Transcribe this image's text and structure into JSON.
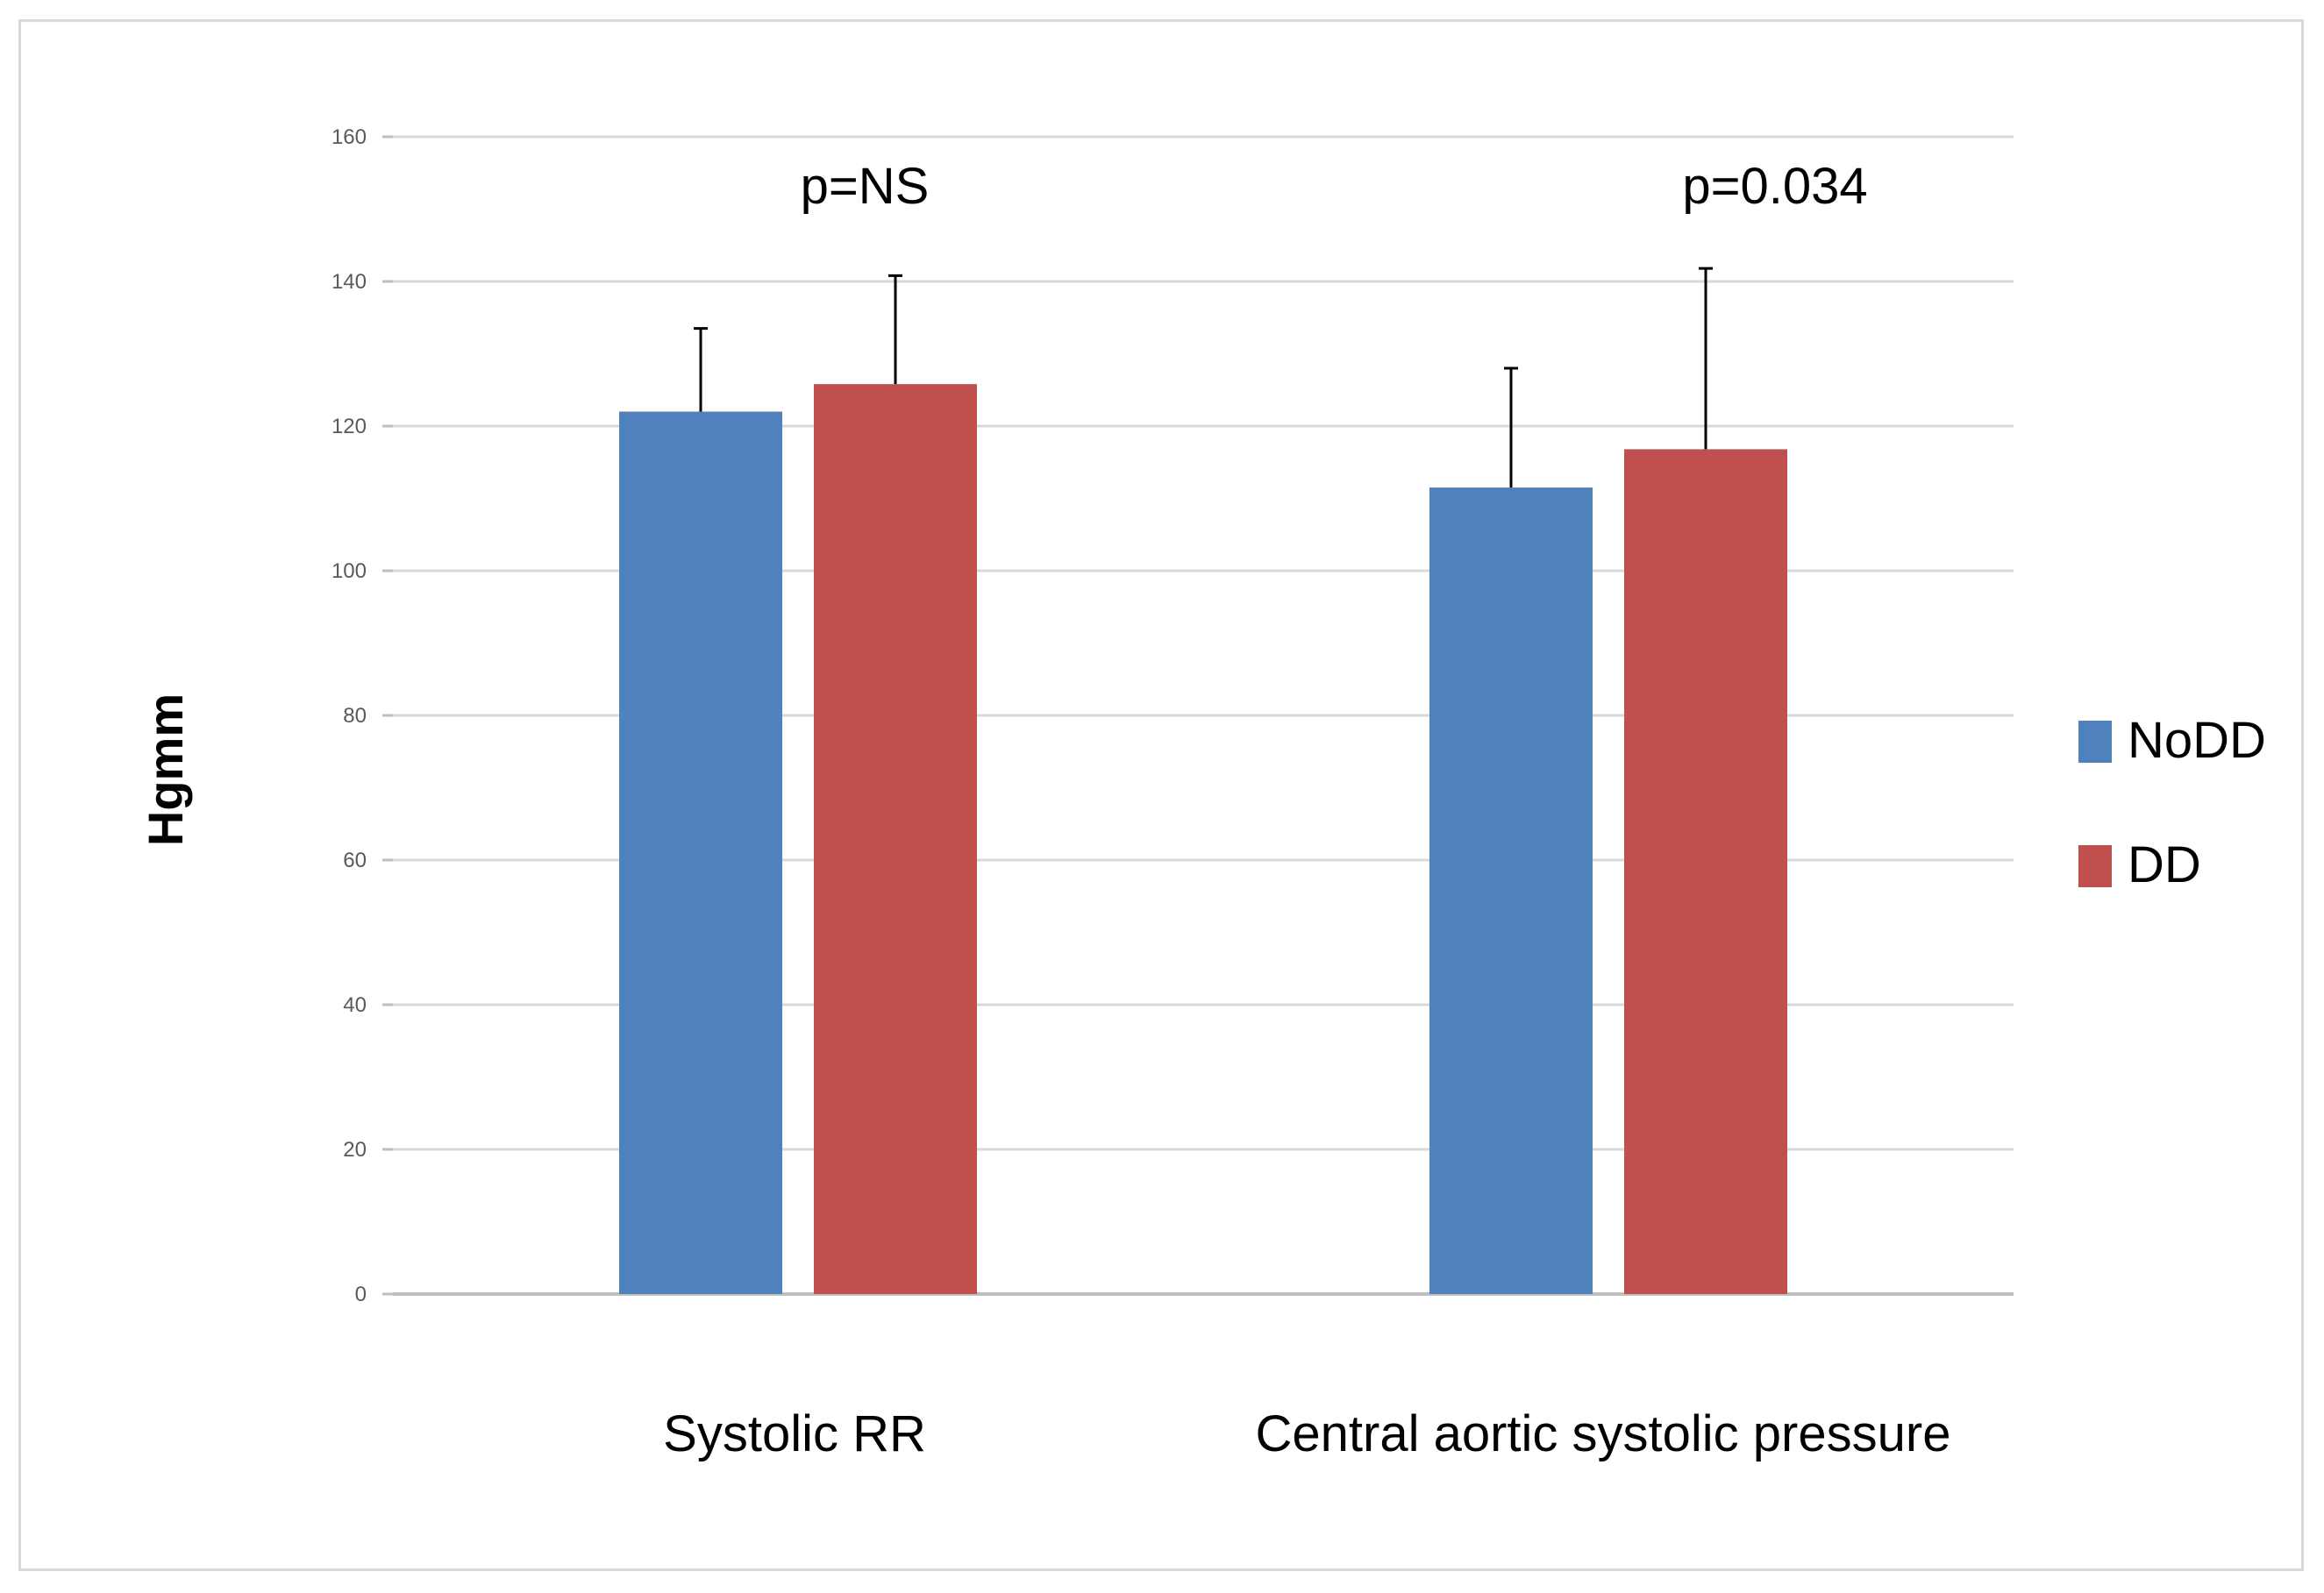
{
  "chart_data": {
    "type": "bar",
    "categories": [
      "Systolic RR",
      "Central aortic systolic pressure"
    ],
    "series": [
      {
        "name": "NoDD",
        "color": "#4f81bd",
        "values": [
          122,
          111.5
        ],
        "error_plus": [
          11.5,
          16.5
        ]
      },
      {
        "name": "DD",
        "color": "#c0504d",
        "values": [
          125.8,
          116.8
        ],
        "error_plus": [
          15,
          25
        ]
      }
    ],
    "annotations": [
      "p=NS",
      "p=0.034"
    ],
    "title": "",
    "xlabel": "",
    "ylabel": "Hgmm",
    "ylim": [
      0,
      160
    ],
    "yticks": [
      0,
      20,
      40,
      60,
      80,
      100,
      120,
      140,
      160
    ],
    "grid": true,
    "legend_position": "right",
    "gridline_color": "#d9d9d9",
    "axis_color": "#bfbfbf"
  }
}
